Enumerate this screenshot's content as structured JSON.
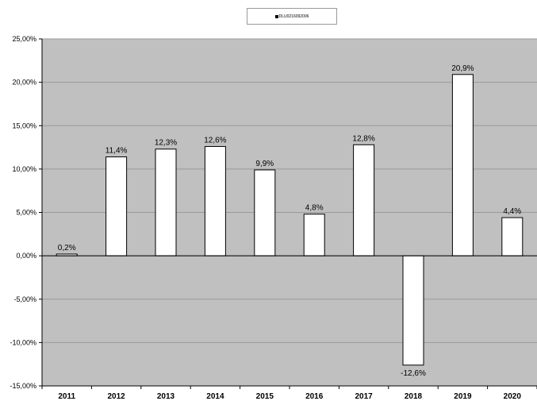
{
  "chart_data": {
    "type": "bar",
    "legend": [
      "DLU0216092006"
    ],
    "categories": [
      "2011",
      "2012",
      "2013",
      "2014",
      "2015",
      "2016",
      "2017",
      "2018",
      "2019",
      "2020"
    ],
    "values": [
      0.2,
      11.4,
      12.3,
      12.6,
      9.9,
      4.8,
      12.8,
      -12.6,
      20.9,
      4.4
    ],
    "data_labels": [
      "0,2%",
      "11,4%",
      "12,3%",
      "12,6%",
      "9,9%",
      "4,8%",
      "12,8%",
      "-12,6%",
      "20,9%",
      "4,4%"
    ],
    "y_ticks": [
      {
        "value": 25,
        "label": "25,00%"
      },
      {
        "value": 20,
        "label": "20,00%"
      },
      {
        "value": 15,
        "label": "15,00%"
      },
      {
        "value": 10,
        "label": "10,00%"
      },
      {
        "value": 5,
        "label": "5,00%"
      },
      {
        "value": 0,
        "label": "0,00%"
      },
      {
        "value": -5,
        "label": "-5,00%"
      },
      {
        "value": -10,
        "label": "-10,00%"
      },
      {
        "value": -15,
        "label": "-15,00%"
      }
    ],
    "ylim": [
      -15,
      25
    ],
    "grid": true,
    "legend_position": "top-center",
    "colors": {
      "plot_background": "#c0c0c0",
      "bar_fill": "#ffffff",
      "bar_stroke": "#000000",
      "negative_label": "#ff0000",
      "gridline": "#9a9a9a"
    }
  }
}
